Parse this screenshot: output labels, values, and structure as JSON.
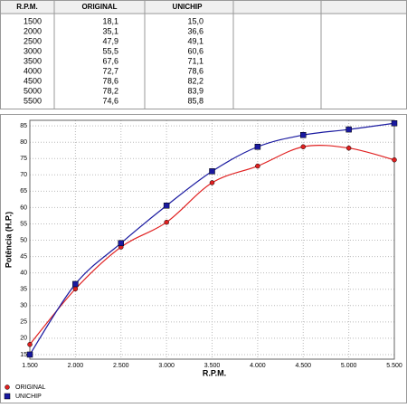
{
  "table": {
    "header": [
      "R.P.M.",
      "ORIGINAL",
      "UNICHIP"
    ],
    "rows": [
      [
        "1500",
        "18,1",
        "15,0"
      ],
      [
        "2000",
        "35,1",
        "36,6"
      ],
      [
        "2500",
        "47,9",
        "49,1"
      ],
      [
        "3000",
        "55,5",
        "60,6"
      ],
      [
        "3500",
        "67,6",
        "71,1"
      ],
      [
        "4000",
        "72,7",
        "78,6"
      ],
      [
        "4500",
        "78,6",
        "82,2"
      ],
      [
        "5000",
        "78,2",
        "83,9"
      ],
      [
        "5500",
        "74,6",
        "85,8"
      ]
    ]
  },
  "chart_data": {
    "type": "line",
    "xlabel": "R.P.M.",
    "ylabel": "Potência (H.P.)",
    "x": [
      1500,
      2000,
      2500,
      3000,
      3500,
      4000,
      4500,
      5000,
      5500
    ],
    "series": [
      {
        "name": "ORIGINAL",
        "color": "#e02020",
        "marker": "circle",
        "values": [
          18.1,
          35.1,
          47.9,
          55.5,
          67.6,
          72.7,
          78.6,
          78.2,
          74.6
        ]
      },
      {
        "name": "UNICHIP",
        "color": "#1a1aa0",
        "marker": "square",
        "values": [
          15.0,
          36.6,
          49.1,
          60.6,
          71.1,
          78.6,
          82.2,
          83.9,
          85.8
        ]
      }
    ],
    "xlim": [
      1500,
      5500
    ],
    "xticks": [
      {
        "value": 1500,
        "label": "1.500"
      },
      {
        "value": 2000,
        "label": "2.000"
      },
      {
        "value": 2500,
        "label": "2.500"
      },
      {
        "value": 3000,
        "label": "3.000"
      },
      {
        "value": 3500,
        "label": "3.500"
      },
      {
        "value": 4000,
        "label": "4.000"
      },
      {
        "value": 4500,
        "label": "4.500"
      },
      {
        "value": 5000,
        "label": "5.000"
      },
      {
        "value": 5500,
        "label": "5.500"
      }
    ],
    "ylim": [
      13.6,
      86.7
    ],
    "yticks": [
      15,
      20,
      25,
      30,
      35,
      40,
      45,
      50,
      55,
      60,
      65,
      70,
      75,
      80,
      85
    ],
    "grid": true
  }
}
